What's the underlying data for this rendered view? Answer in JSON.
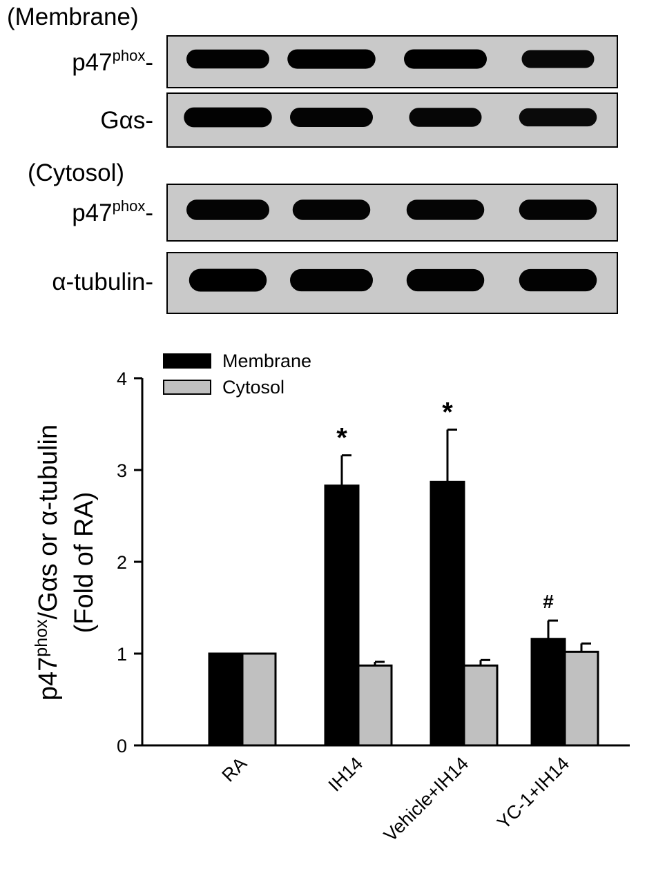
{
  "blots": {
    "membrane_label": "(Membrane)",
    "cytosol_label": "(Cytosol)",
    "rows": [
      {
        "name_main": "p47",
        "name_sup": "phox",
        "name_suffix": "-",
        "section": "membrane",
        "band_intensity": [
          0.95,
          1.0,
          1.0,
          0.8
        ],
        "band_width": [
          0.8,
          0.85,
          0.8,
          0.7
        ]
      },
      {
        "name_main": "Gαs-",
        "name_sup": "",
        "name_suffix": "",
        "section": "membrane",
        "band_intensity": [
          0.95,
          0.9,
          0.85,
          0.75
        ],
        "band_width": [
          0.85,
          0.8,
          0.7,
          0.75
        ]
      },
      {
        "name_main": "p47",
        "name_sup": "phox",
        "name_suffix": "-",
        "section": "cytosol",
        "band_intensity": [
          0.9,
          0.9,
          0.88,
          0.9
        ],
        "band_width": [
          0.8,
          0.75,
          0.75,
          0.75
        ]
      },
      {
        "name_main": "α-tubulin-",
        "name_sup": "",
        "name_suffix": "",
        "section": "cytosol",
        "band_intensity": [
          1.0,
          0.95,
          0.95,
          0.95
        ],
        "band_width": [
          0.75,
          0.8,
          0.75,
          0.75
        ]
      }
    ]
  },
  "chart_data": {
    "type": "bar",
    "categories": [
      "RA",
      "IH14",
      "Vehicle+IH14",
      "YC-1+IH14"
    ],
    "series": [
      {
        "name": "Membrane",
        "color": "#000000",
        "values": [
          1.0,
          2.83,
          2.87,
          1.16
        ],
        "errors": [
          0,
          0.33,
          0.57,
          0.2
        ]
      },
      {
        "name": "Cytosol",
        "color": "#c0c0c0",
        "values": [
          1.0,
          0.87,
          0.87,
          1.02
        ],
        "errors": [
          0,
          0.04,
          0.06,
          0.09
        ]
      }
    ],
    "ylabel_line1_main": "p47",
    "ylabel_line1_sup": "phox",
    "ylabel_line1_rest": "/Gαs or α-tubulin",
    "ylabel_line2": "(Fold of RA)",
    "ylim": [
      0,
      4
    ],
    "yticks": [
      "0",
      "1",
      "2",
      "3",
      "4"
    ],
    "annotations": [
      {
        "category": "IH14",
        "series": "Membrane",
        "text": "*"
      },
      {
        "category": "Vehicle+IH14",
        "series": "Membrane",
        "text": "*"
      },
      {
        "category": "YC-1+IH14",
        "series": "Membrane",
        "text": "#"
      }
    ],
    "legend_position": "top-left",
    "grid": false
  }
}
